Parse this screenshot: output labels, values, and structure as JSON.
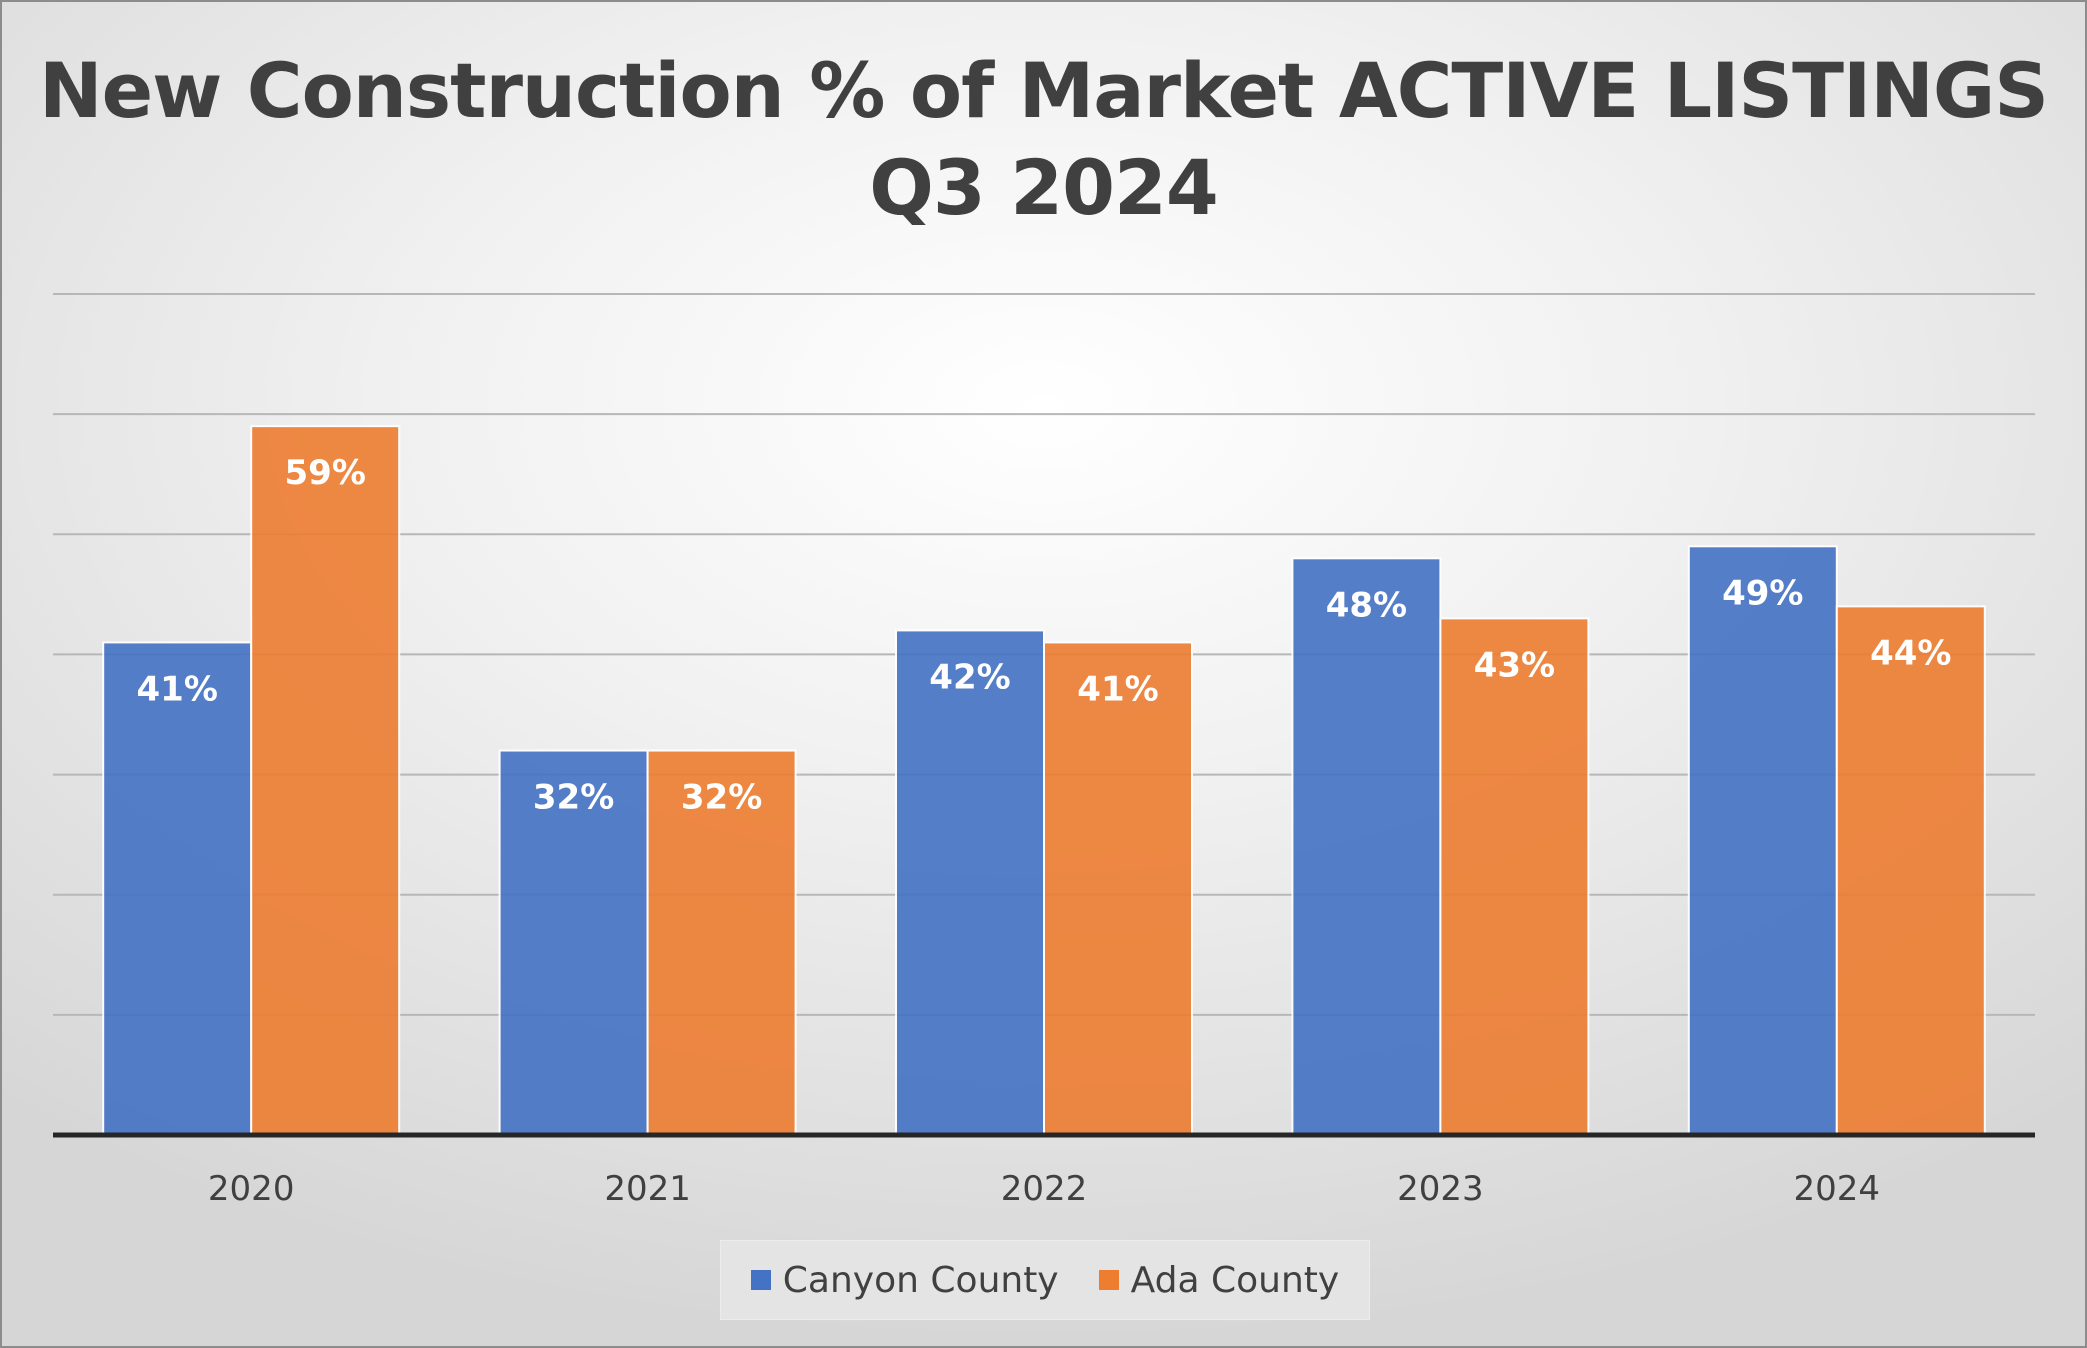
{
  "chart_data": {
    "type": "bar",
    "title": "New Construction % of Market ACTIVE LISTINGS",
    "subtitle": "Q3 2024",
    "categories": [
      "2020",
      "2021",
      "2022",
      "2023",
      "2024"
    ],
    "series": [
      {
        "name": "Canyon County",
        "color": "#4472C4",
        "values": [
          41,
          32,
          42,
          48,
          49
        ],
        "labels": [
          "41%",
          "32%",
          "42%",
          "48%",
          "49%"
        ]
      },
      {
        "name": "Ada County",
        "color": "#ED7D31",
        "values": [
          59,
          32,
          41,
          43,
          44
        ],
        "labels": [
          "59%",
          "32%",
          "41%",
          "43%",
          "44%"
        ]
      }
    ],
    "ylim": [
      0,
      70
    ],
    "gridlines": true,
    "y_axis_labels_visible": false,
    "legend_position": "bottom"
  }
}
